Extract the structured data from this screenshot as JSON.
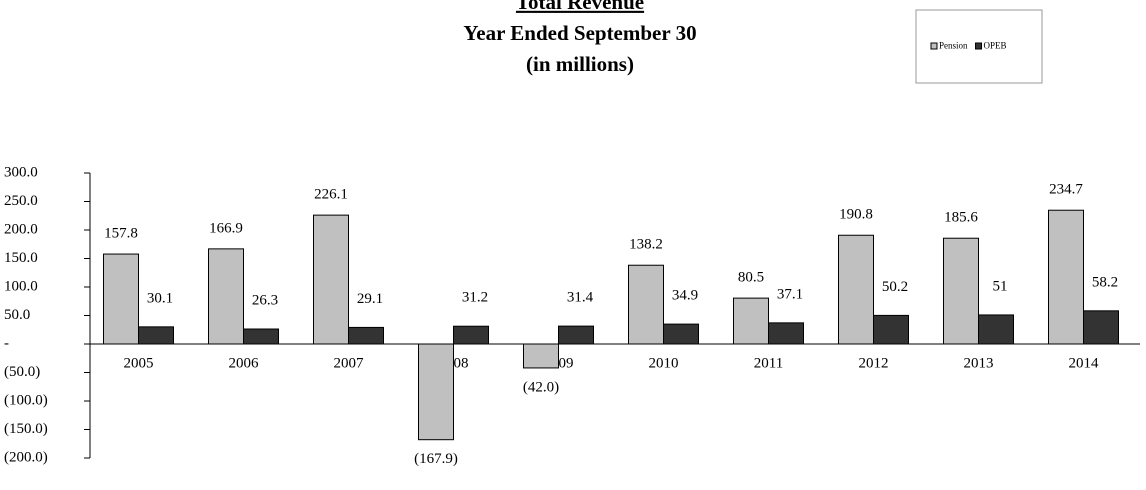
{
  "chart_data": {
    "type": "bar",
    "title": [
      "Total Revenue",
      "Year Ended September 30",
      "(in millions)"
    ],
    "categories": [
      "2005",
      "2006",
      "2007",
      "2008",
      "2009",
      "2010",
      "2011",
      "2012",
      "2013",
      "2014"
    ],
    "series": [
      {
        "name": "Pension",
        "color": "#c0c0c0",
        "values": [
          157.8,
          166.9,
          226.1,
          -167.9,
          -42.0,
          138.2,
          80.5,
          190.8,
          185.6,
          234.7
        ],
        "value_labels": [
          "157.8",
          "166.9",
          "226.1",
          "(167.9)",
          "(42.0)",
          "138.2",
          "80.5",
          "190.8",
          "185.6",
          "234.7"
        ]
      },
      {
        "name": "OPEB",
        "color": "#333333",
        "values": [
          30.1,
          26.3,
          29.1,
          31.2,
          31.4,
          34.9,
          37.1,
          50.2,
          51.0,
          58.2
        ]
      }
    ],
    "ylim": [
      -200,
      300
    ],
    "yticks": [
      {
        "value": 300,
        "label": "300.0"
      },
      {
        "value": 250,
        "label": "250.0"
      },
      {
        "value": 200,
        "label": "200.0"
      },
      {
        "value": 150,
        "label": "150.0"
      },
      {
        "value": 100,
        "label": "100.0"
      },
      {
        "value": 50,
        "label": "50.0"
      },
      {
        "value": 0,
        "label": "-"
      },
      {
        "value": -50,
        "label": "(50.0)"
      },
      {
        "value": -100,
        "label": "(100.0)"
      },
      {
        "value": -150,
        "label": "(150.0)"
      },
      {
        "value": -200,
        "label": "(200.0)"
      }
    ],
    "legend": "top-right"
  }
}
